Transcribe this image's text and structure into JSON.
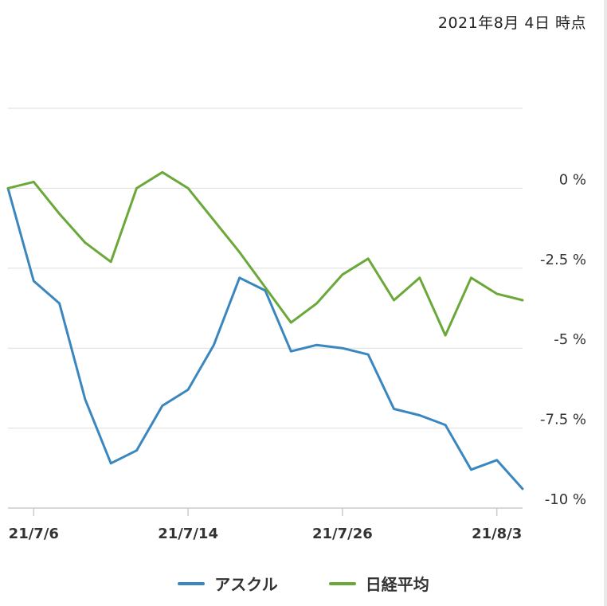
{
  "as_of": "2021年8月 4日 時点",
  "colors": {
    "series_1": "#3a87c0",
    "series_2": "#6aa83a",
    "grid": "#dddddd",
    "axis": "#cccccc",
    "text": "#333333"
  },
  "chart_data": {
    "type": "line",
    "y_unit": "%",
    "ylim": [
      -10,
      2.5
    ],
    "yticks": [
      {
        "value": 0,
        "label": "0 %"
      },
      {
        "value": -2.5,
        "label": "-2.5 %"
      },
      {
        "value": -5,
        "label": "-5 %"
      },
      {
        "value": -7.5,
        "label": "-7.5 %"
      },
      {
        "value": -10,
        "label": "-10 %"
      }
    ],
    "xticks": [
      {
        "index": 1,
        "label": "21/7/6"
      },
      {
        "index": 7,
        "label": "21/7/14"
      },
      {
        "index": 13,
        "label": "21/7/26"
      },
      {
        "index": 19,
        "label": "21/8/3"
      }
    ],
    "grid": true,
    "legend_position": "bottom",
    "series": [
      {
        "name": "アスクル",
        "color": "#3a87c0",
        "values": [
          0,
          -2.9,
          -3.6,
          -6.6,
          -8.6,
          -8.2,
          -6.8,
          -6.3,
          -4.9,
          -2.8,
          -3.2,
          -5.1,
          -4.9,
          -5.0,
          -5.2,
          -6.9,
          -7.1,
          -7.4,
          -8.8,
          -8.5,
          -9.4
        ]
      },
      {
        "name": "日経平均",
        "color": "#6aa83a",
        "values": [
          0,
          0.2,
          -0.8,
          -1.7,
          -2.3,
          0,
          0.5,
          0,
          -1.0,
          -2.0,
          -3.1,
          -4.2,
          -3.6,
          -2.7,
          -2.2,
          -3.5,
          -2.8,
          -4.6,
          -2.8,
          -3.3,
          -3.5
        ]
      }
    ]
  }
}
